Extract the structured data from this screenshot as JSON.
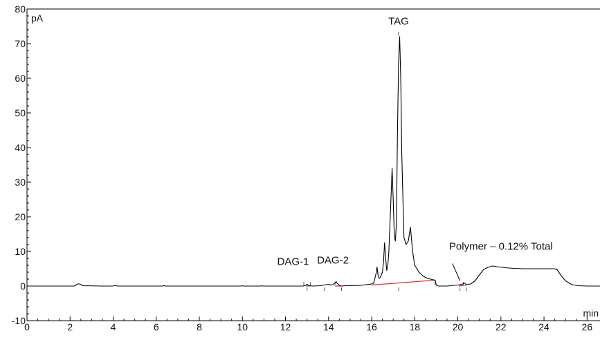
{
  "chart_data": {
    "type": "line",
    "title": "",
    "xlabel": "min",
    "ylabel": "pA",
    "xlim": [
      0,
      26.6
    ],
    "ylim": [
      -10,
      80
    ],
    "x_ticks": [
      0,
      2,
      4,
      6,
      8,
      10,
      12,
      14,
      16,
      18,
      20,
      22,
      24,
      26
    ],
    "y_ticks": [
      -10,
      0,
      10,
      20,
      30,
      40,
      50,
      60,
      70,
      80
    ],
    "grid": false,
    "series": [
      {
        "color": "#000000",
        "x": [
          0,
          2.2,
          2.35,
          2.45,
          2.6,
          3.5,
          4.0,
          4.1,
          4.2,
          6.3,
          6.35,
          6.4,
          9.95,
          10.0,
          10.05,
          10.85,
          10.9,
          10.95,
          12.8,
          12.95,
          13.0,
          13.05,
          13.1,
          13.3,
          13.6,
          14.0,
          14.1,
          14.2,
          14.3,
          14.35,
          14.4,
          14.5,
          14.6,
          14.8,
          15.5,
          16.0,
          16.1,
          16.2,
          16.25,
          16.3,
          16.35,
          16.4,
          16.5,
          16.55,
          16.6,
          16.65,
          16.7,
          16.75,
          16.8,
          16.9,
          16.95,
          17.0,
          17.05,
          17.1,
          17.15,
          17.2,
          17.25,
          17.3,
          17.35,
          17.4,
          17.5,
          17.6,
          17.7,
          17.8,
          17.9,
          18.0,
          18.2,
          18.4,
          18.6,
          18.8,
          18.95,
          19.0,
          19.1,
          19.5,
          19.8,
          20.0,
          20.2,
          20.3,
          20.4,
          20.6,
          20.8,
          21.0,
          21.2,
          21.4,
          21.6,
          21.8,
          22.2,
          22.6,
          23.0,
          23.5,
          24.0,
          24.3,
          24.5,
          24.6,
          24.8,
          25.0,
          25.3,
          25.6,
          26.0,
          26.6
        ],
        "y": [
          0,
          0,
          0.6,
          0.6,
          0.1,
          0,
          0,
          0.2,
          0,
          0,
          0.15,
          0,
          0,
          0.1,
          0,
          0,
          0.1,
          0,
          0,
          0.2,
          0.5,
          0.3,
          0.1,
          0,
          0.1,
          0.5,
          0.3,
          0.4,
          0.9,
          1.3,
          0.8,
          0.2,
          0,
          0.1,
          0.2,
          0.6,
          1.0,
          3.5,
          5.5,
          3.0,
          2.2,
          2.5,
          4.0,
          7.0,
          12.5,
          8.0,
          4.5,
          6.0,
          10.0,
          26.0,
          34.0,
          25.0,
          15.0,
          13.0,
          18.0,
          45.0,
          65.0,
          72.0,
          60.0,
          38.0,
          14.0,
          12.0,
          13.0,
          17.0,
          10.0,
          6.0,
          4.0,
          2.8,
          2.2,
          1.9,
          1.7,
          0.3,
          0,
          0,
          0.2,
          0.3,
          0.5,
          0.9,
          0.4,
          0.6,
          1.5,
          3.2,
          4.8,
          5.4,
          5.8,
          5.6,
          5.3,
          5.1,
          5.0,
          5.0,
          5.0,
          5.0,
          5.0,
          4.8,
          3.0,
          1.5,
          0.4,
          0.1,
          0,
          0
        ]
      }
    ],
    "baselines": [
      {
        "x": [
          12.95,
          13.15
        ],
        "y": [
          0.0,
          0.0
        ],
        "color": "#e03030"
      },
      {
        "x": [
          14.3,
          14.6
        ],
        "y": [
          0.0,
          0.0
        ],
        "color": "#e03030"
      },
      {
        "x": [
          16.0,
          18.95
        ],
        "y": [
          0.3,
          1.7
        ],
        "color": "#e03030"
      },
      {
        "x": [
          20.05,
          20.4
        ],
        "y": [
          0.0,
          0.3
        ],
        "color": "#e03030"
      }
    ],
    "peak_markers": [
      12.85,
      13.0,
      13.15,
      13.8,
      14.3,
      14.6,
      16.1,
      17.25,
      18.95,
      20.1,
      20.25,
      20.4
    ],
    "annotations": [
      {
        "text": "TAG",
        "x": 17.25,
        "y": 75.5
      },
      {
        "text": "DAG-1",
        "x": 12.35,
        "y": 6.1
      },
      {
        "text": "DAG-2",
        "x": 14.2,
        "y": 6.5
      },
      {
        "text": "Polymer – 0.12% Total",
        "x": 22.0,
        "y": 10.5
      }
    ]
  }
}
